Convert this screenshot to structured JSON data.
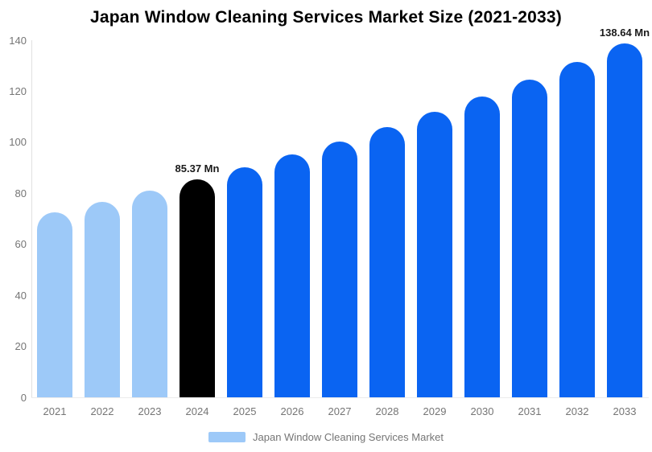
{
  "chart_data": {
    "type": "bar",
    "title": "Japan Window Cleaning Services Market Size (2021-2033)",
    "categories": [
      "2021",
      "2022",
      "2023",
      "2024",
      "2025",
      "2026",
      "2027",
      "2028",
      "2029",
      "2030",
      "2031",
      "2032",
      "2033"
    ],
    "values": [
      72.6,
      76.7,
      80.9,
      85.37,
      90.1,
      95.1,
      100.4,
      105.9,
      111.8,
      118.0,
      124.5,
      131.4,
      138.64
    ],
    "bar_colors": [
      "#9DC9F8",
      "#9DC9F8",
      "#9DC9F8",
      "#000000",
      "#0A64F2",
      "#0A64F2",
      "#0A64F2",
      "#0A64F2",
      "#0A64F2",
      "#0A64F2",
      "#0A64F2",
      "#0A64F2",
      "#0A64F2"
    ],
    "point_labels": [
      {
        "category": "2024",
        "text": "85.37 Mn"
      },
      {
        "category": "2033",
        "text": "138.64 Mn"
      }
    ],
    "xlabel": "",
    "ylabel": "",
    "ylim": [
      0,
      140
    ],
    "yticks": [
      0,
      20,
      40,
      60,
      80,
      100,
      120,
      140
    ],
    "grid": "off",
    "legend": {
      "position": "bottom",
      "label": "Japan Window Cleaning Services Market",
      "swatch_color": "#9DC9F8"
    },
    "colors": {
      "historical_bar": "#9DC9F8",
      "base_year_bar": "#000000",
      "forecast_bar": "#0A64F2",
      "axis_line": "#e0e0e0",
      "tick_label": "#757575",
      "title": "#000000"
    }
  }
}
